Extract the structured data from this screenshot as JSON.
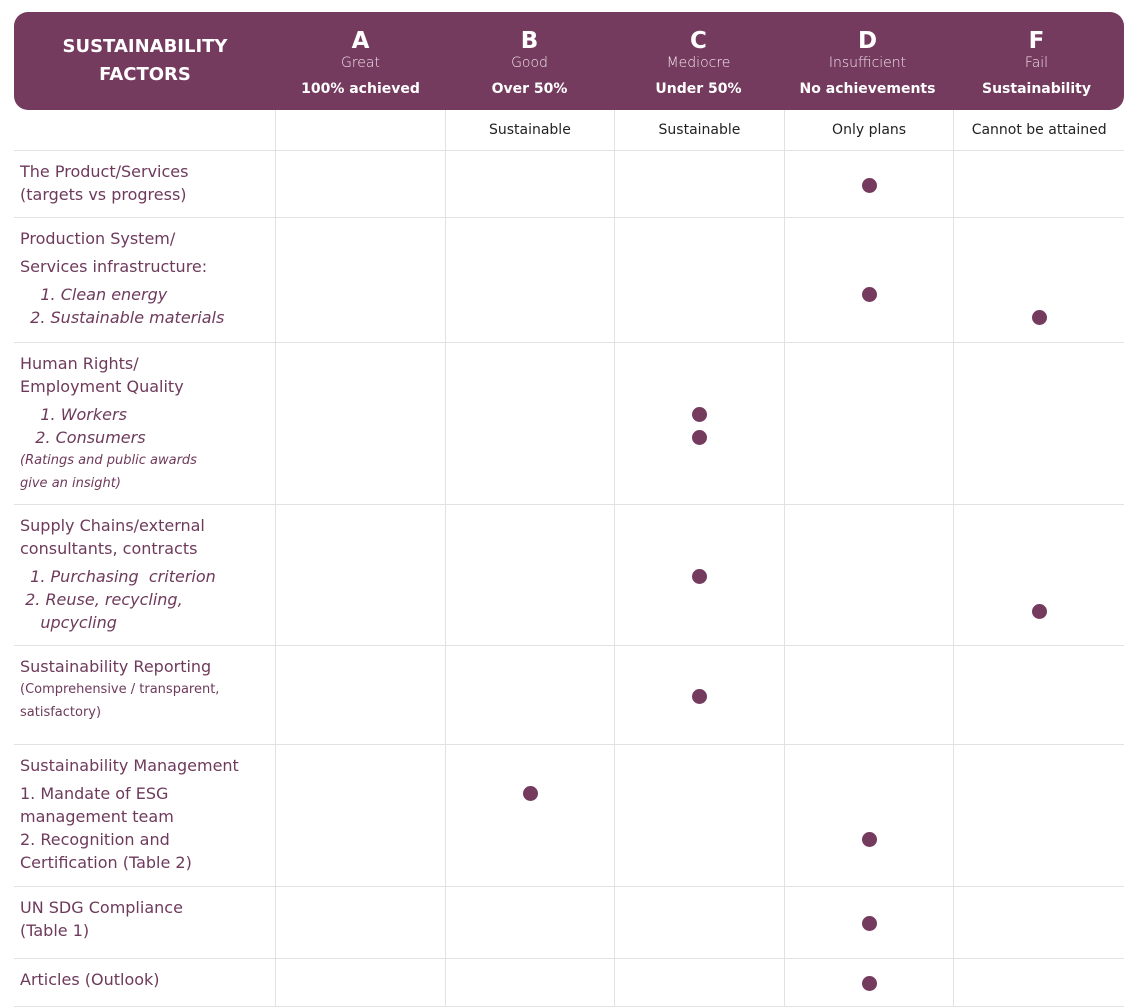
{
  "colors": {
    "accent": "#753b5e",
    "text": "#6e3a5c"
  },
  "header": {
    "factors_title": [
      "SUSTAINABILITY",
      "FACTORS"
    ],
    "grades": [
      {
        "letter": "A",
        "word": "Great",
        "threshold": "100% achieved",
        "note": ""
      },
      {
        "letter": "B",
        "word": "Good",
        "threshold": "Over 50%",
        "note": "Sustainable"
      },
      {
        "letter": "C",
        "word": "Mediocre",
        "threshold": "Under 50%",
        "note": "Sustainable"
      },
      {
        "letter": "D",
        "word": "Insufficient",
        "threshold": "No achievements",
        "note": "Only plans"
      },
      {
        "letter": "F",
        "word": "Fail",
        "threshold": "Sustainability",
        "note": "Cannot be attained"
      }
    ]
  },
  "rows": [
    {
      "lines": [
        {
          "t": "The Product/Services"
        },
        {
          "t": "(targets vs progress)"
        }
      ],
      "marks": [
        {
          "grade": "D",
          "line": null
        }
      ]
    },
    {
      "lines": [
        {
          "t": "Production System/"
        },
        {
          "t": "Services infrastructure:",
          "gap": true
        },
        {
          "t": "    1. Clean energy",
          "it": true,
          "gap": true
        },
        {
          "t": "  2. Sustainable materials",
          "it": true
        }
      ],
      "marks": [
        {
          "grade": "D",
          "line": 2
        },
        {
          "grade": "F",
          "line": 3
        }
      ]
    },
    {
      "lines": [
        {
          "t": "Human Rights/"
        },
        {
          "t": "Employment Quality"
        },
        {
          "t": "    1. Workers",
          "it": true,
          "gap": true
        },
        {
          "t": "   2. Consumers",
          "it": true
        },
        {
          "t": "(Ratings and public awards",
          "it": true,
          "sm": true
        },
        {
          "t": "give an insight)",
          "it": true,
          "sm": true
        }
      ],
      "marks": [
        {
          "grade": "C",
          "line": 2
        },
        {
          "grade": "C",
          "line": 3
        }
      ]
    },
    {
      "lines": [
        {
          "t": "Supply Chains/external"
        },
        {
          "t": "consultants, contracts"
        },
        {
          "t": "  1. Purchasing  criterion",
          "it": true,
          "gap": true
        },
        {
          "t": " 2. Reuse, recycling,",
          "it": true
        },
        {
          "t": "    upcycling",
          "it": true
        }
      ],
      "marks": [
        {
          "grade": "C",
          "line": 2
        },
        {
          "grade": "F",
          "line": 3.5
        }
      ]
    },
    {
      "lines": [
        {
          "t": "Sustainability Reporting"
        },
        {
          "t": "(Comprehensive / transparent,",
          "sm": true
        },
        {
          "t": "satisfactory)",
          "sm": true
        }
      ],
      "marks": [
        {
          "grade": "C",
          "line": null
        }
      ]
    },
    {
      "lines": [
        {
          "t": "Sustainability Management"
        },
        {
          "t": "1. Mandate of ESG",
          "gap": true
        },
        {
          "t": "management team"
        },
        {
          "t": "2. Recognition and"
        },
        {
          "t": "Certification (Table 2)"
        }
      ],
      "marks": [
        {
          "grade": "B",
          "line": 1
        },
        {
          "grade": "D",
          "line": 3
        }
      ]
    },
    {
      "lines": [
        {
          "t": "UN SDG Compliance"
        },
        {
          "t": "(Table 1)"
        }
      ],
      "marks": [
        {
          "grade": "D",
          "line": null
        }
      ]
    },
    {
      "lines": [
        {
          "t": "Articles (Outlook)"
        }
      ],
      "marks": [
        {
          "grade": "D",
          "line": null
        }
      ]
    }
  ]
}
